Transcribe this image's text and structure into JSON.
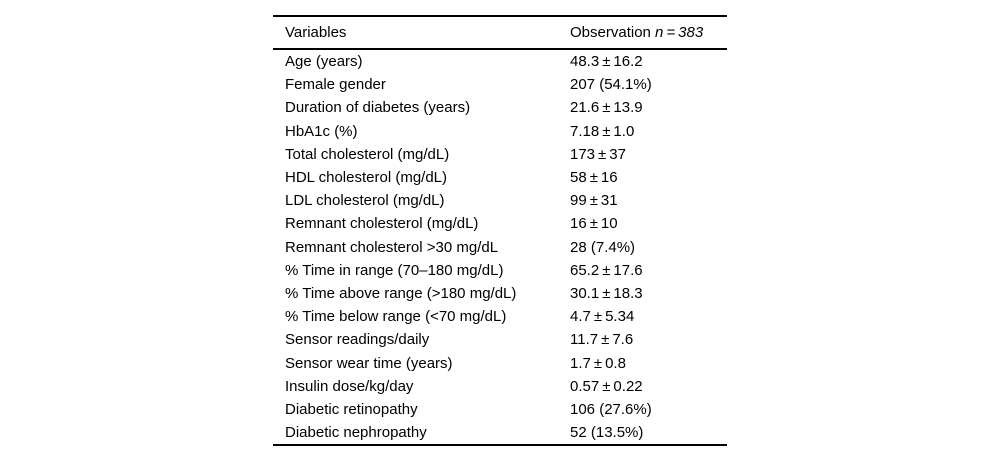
{
  "table": {
    "header": {
      "variables_label": "Variables",
      "observation_prefix": "Observation ",
      "observation_n": "n = 383"
    },
    "rows": [
      {
        "label": "Age (years)",
        "value": "48.3 ± 16.2"
      },
      {
        "label": "Female gender",
        "value": "207 (54.1%)"
      },
      {
        "label": "Duration of diabetes (years)",
        "value": "21.6 ± 13.9"
      },
      {
        "label": "HbA1c (%)",
        "value": "7.18 ± 1.0"
      },
      {
        "label": "Total cholesterol (mg/dL)",
        "value": "173 ± 37"
      },
      {
        "label": "HDL cholesterol (mg/dL)",
        "value": "58 ± 16"
      },
      {
        "label": "LDL cholesterol (mg/dL)",
        "value": "99 ± 31"
      },
      {
        "label": "Remnant cholesterol (mg/dL)",
        "value": "16 ± 10"
      },
      {
        "label": "Remnant cholesterol >30 mg/dL",
        "value": "28 (7.4%)"
      },
      {
        "label": "% Time in range (70–180 mg/dL)",
        "value": "65.2 ± 17.6"
      },
      {
        "label": "% Time above range (>180 mg/dL)",
        "value": "30.1 ± 18.3"
      },
      {
        "label": "% Time below range (<70 mg/dL)",
        "value": "4.7 ± 5.34"
      },
      {
        "label": "Sensor readings/daily",
        "value": "11.7 ± 7.6"
      },
      {
        "label": "Sensor wear time (years)",
        "value": "1.7 ± 0.8"
      },
      {
        "label": "Insulin dose/kg/day",
        "value": "0.57 ± 0.22"
      },
      {
        "label": "Diabetic retinopathy",
        "value": "106 (27.6%)"
      },
      {
        "label": "Diabetic nephropathy",
        "value": "52 (13.5%)"
      }
    ]
  }
}
